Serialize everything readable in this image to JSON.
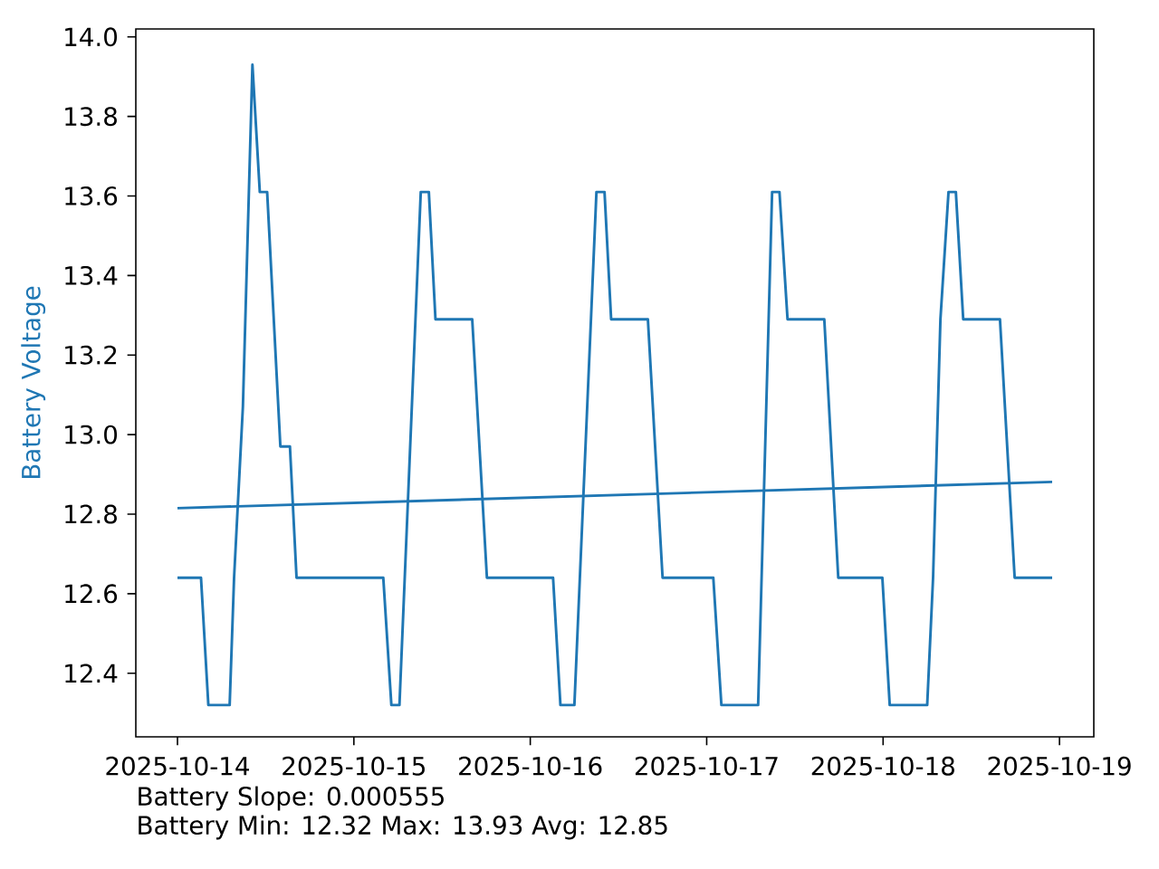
{
  "chart_data": {
    "type": "line",
    "ylabel": "Battery Voltage",
    "x": [
      "2025-10-14T00:00",
      "2025-10-14T03:12",
      "2025-10-14T04:12",
      "2025-10-14T07:06",
      "2025-10-14T07:42",
      "2025-10-14T08:54",
      "2025-10-14T10:12",
      "2025-10-14T11:12",
      "2025-10-14T12:12",
      "2025-10-14T14:00",
      "2025-10-14T15:18",
      "2025-10-14T16:12",
      "2025-10-15T04:00",
      "2025-10-15T05:06",
      "2025-10-15T06:12",
      "2025-10-15T09:06",
      "2025-10-15T10:12",
      "2025-10-15T11:06",
      "2025-10-15T16:06",
      "2025-10-15T18:06",
      "2025-10-16T03:06",
      "2025-10-16T04:06",
      "2025-10-16T06:00",
      "2025-10-16T09:00",
      "2025-10-16T10:06",
      "2025-10-16T11:00",
      "2025-10-16T16:00",
      "2025-10-16T18:00",
      "2025-10-17T00:54",
      "2025-10-17T02:00",
      "2025-10-17T07:00",
      "2025-10-17T08:54",
      "2025-10-17T09:54",
      "2025-10-17T11:00",
      "2025-10-17T16:00",
      "2025-10-17T17:54",
      "2025-10-17T23:54",
      "2025-10-18T00:54",
      "2025-10-18T06:00",
      "2025-10-18T06:48",
      "2025-10-18T07:48",
      "2025-10-18T08:54",
      "2025-10-18T09:54",
      "2025-10-18T10:54",
      "2025-10-18T15:54",
      "2025-10-18T17:54",
      "2025-10-18T23:00"
    ],
    "series": [
      {
        "color": "#1f77b4",
        "values": [
          12.64,
          12.64,
          12.32,
          12.32,
          12.64,
          13.07,
          13.93,
          13.61,
          13.61,
          12.97,
          12.97,
          12.64,
          12.64,
          12.32,
          12.32,
          13.61,
          13.61,
          13.29,
          13.29,
          12.64,
          12.64,
          12.32,
          12.32,
          13.61,
          13.61,
          13.29,
          13.29,
          12.64,
          12.64,
          12.32,
          12.32,
          13.61,
          13.61,
          13.29,
          13.29,
          12.64,
          12.64,
          12.32,
          12.32,
          12.64,
          13.29,
          13.61,
          13.61,
          13.29,
          13.29,
          12.64,
          12.64
        ]
      },
      {
        "type": "line",
        "color": "#1f77b4",
        "x": [
          "2025-10-14T00:00",
          "2025-10-18T23:00"
        ],
        "values": [
          12.815,
          12.881
        ]
      }
    ],
    "xlim": [
      "2025-10-13T18:20",
      "2025-10-19T04:40"
    ],
    "xticks": [
      "2025-10-14",
      "2025-10-15",
      "2025-10-16",
      "2025-10-17",
      "2025-10-18",
      "2025-10-19"
    ],
    "ylim": [
      12.24,
      14.02
    ],
    "yticks": [
      {
        "value": 12.4,
        "label": "12.4"
      },
      {
        "value": 12.6,
        "label": "12.6"
      },
      {
        "value": 12.8,
        "label": "12.8"
      },
      {
        "value": 13.0,
        "label": "13.0"
      },
      {
        "value": 13.2,
        "label": "13.2"
      },
      {
        "value": 13.4,
        "label": "13.4"
      },
      {
        "value": 13.6,
        "label": "13.6"
      },
      {
        "value": 13.8,
        "label": "13.8"
      },
      {
        "value": 14.0,
        "label": "14.0"
      }
    ],
    "annotations": [
      "Battery Slope: 0.000555",
      "Battery Min: 12.32 Max: 13.93 Avg: 12.85"
    ]
  }
}
